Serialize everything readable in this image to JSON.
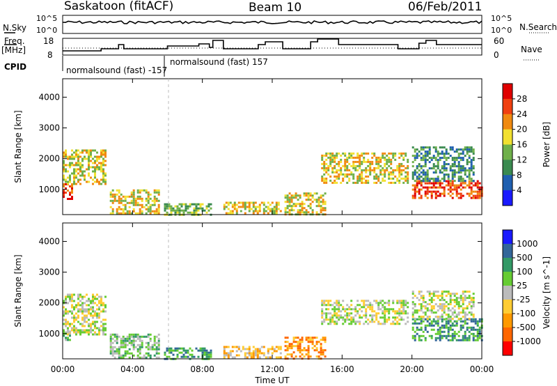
{
  "header": {
    "station": "Saskatoon (fitACF)",
    "beam": "Beam 10",
    "date": "06/Feb/2011"
  },
  "top_panels": {
    "nsky_label": "N.Sky",
    "nsky_hi": "10^5",
    "nsky_lo": "10^0",
    "nsearch_label": "N.Search",
    "nsearch_hi": "10^5",
    "nsearch_lo": "10^0",
    "freq_label": "Freq.",
    "freq_unit": "[MHz]",
    "freq_ticks": [
      "18",
      "8"
    ],
    "nave_label": "Nave",
    "nave_ticks": [
      "60",
      "0"
    ],
    "cpid_label": "CPID",
    "cpid_1": "normalsound (fast) -157",
    "cpid_2": "normalsound (fast) 157"
  },
  "x_axis": {
    "label": "Time UT",
    "ticks": [
      "00:00",
      "04:00",
      "08:00",
      "12:00",
      "16:00",
      "20:00",
      "00:00"
    ]
  },
  "colors": {
    "power": [
      "#1a1aff",
      "#1f5fb0",
      "#3a8a50",
      "#6fb04a",
      "#f2e030",
      "#f08a10",
      "#f04010",
      "#e00000"
    ],
    "velocity": [
      "#ff0000",
      "#ff6600",
      "#ff9900",
      "#ffcc33",
      "#bbbbbb",
      "#66cc33",
      "#339966",
      "#336699",
      "#1a1aff"
    ]
  },
  "chart_data": [
    {
      "type": "heatmap",
      "panel": "power",
      "ylabel": "Slant Range [km]",
      "yticks": [
        "4000",
        "3000",
        "2000",
        "1000"
      ],
      "ylim": [
        180,
        4600
      ],
      "xlim": [
        0,
        24
      ],
      "colorbar_label": "Power [dB]",
      "colorbar_ticks": [
        "28",
        "24",
        "20",
        "16",
        "12",
        "8",
        "4"
      ],
      "echo_regions": [
        {
          "t0": 0.0,
          "t1": 0.5,
          "r0": 700,
          "r1": 1200,
          "level": 6
        },
        {
          "t0": 0.0,
          "t1": 2.5,
          "r0": 1200,
          "r1": 2300,
          "level": 4
        },
        {
          "t0": 2.7,
          "t1": 5.5,
          "r0": 200,
          "r1": 1000,
          "level": 4
        },
        {
          "t0": 5.8,
          "t1": 8.5,
          "r0": 200,
          "r1": 550,
          "level": 3
        },
        {
          "t0": 9.2,
          "t1": 12.5,
          "r0": 200,
          "r1": 600,
          "level": 4
        },
        {
          "t0": 12.7,
          "t1": 15.0,
          "r0": 200,
          "r1": 900,
          "level": 4
        },
        {
          "t0": 14.8,
          "t1": 19.8,
          "r0": 1200,
          "r1": 2200,
          "level": 4
        },
        {
          "t0": 20.0,
          "t1": 24.0,
          "r0": 700,
          "r1": 1300,
          "level": 6
        },
        {
          "t0": 20.0,
          "t1": 23.5,
          "r0": 1300,
          "r1": 2400,
          "level": 2
        }
      ]
    },
    {
      "type": "heatmap",
      "panel": "velocity",
      "ylabel": "Slant Range [km]",
      "yticks": [
        "4000",
        "3000",
        "2000",
        "1000"
      ],
      "ylim": [
        180,
        4600
      ],
      "xlim": [
        0,
        24
      ],
      "colorbar_label": "Velocity [m s^-1]",
      "colorbar_ticks": [
        "1000",
        "500",
        "100",
        "25",
        "-25",
        "-100",
        "-500",
        "-1000"
      ],
      "echo_regions": [
        {
          "t0": 0.0,
          "t1": 2.5,
          "r0": 1000,
          "r1": 2300,
          "level": 4
        },
        {
          "t0": 0.0,
          "t1": 0.4,
          "r0": 700,
          "r1": 1100,
          "level": 5
        },
        {
          "t0": 2.7,
          "t1": 5.5,
          "r0": 200,
          "r1": 1000,
          "level": 5
        },
        {
          "t0": 5.8,
          "t1": 8.5,
          "r0": 200,
          "r1": 550,
          "level": 6
        },
        {
          "t0": 9.2,
          "t1": 12.5,
          "r0": 200,
          "r1": 600,
          "level": 3
        },
        {
          "t0": 12.7,
          "t1": 15.0,
          "r0": 200,
          "r1": 900,
          "level": 2
        },
        {
          "t0": 14.8,
          "t1": 19.8,
          "r0": 1300,
          "r1": 2100,
          "level": 4
        },
        {
          "t0": 20.0,
          "t1": 24.0,
          "r0": 800,
          "r1": 1500,
          "level": 6
        },
        {
          "t0": 20.0,
          "t1": 23.5,
          "r0": 1500,
          "r1": 2400,
          "level": 4
        }
      ]
    }
  ]
}
